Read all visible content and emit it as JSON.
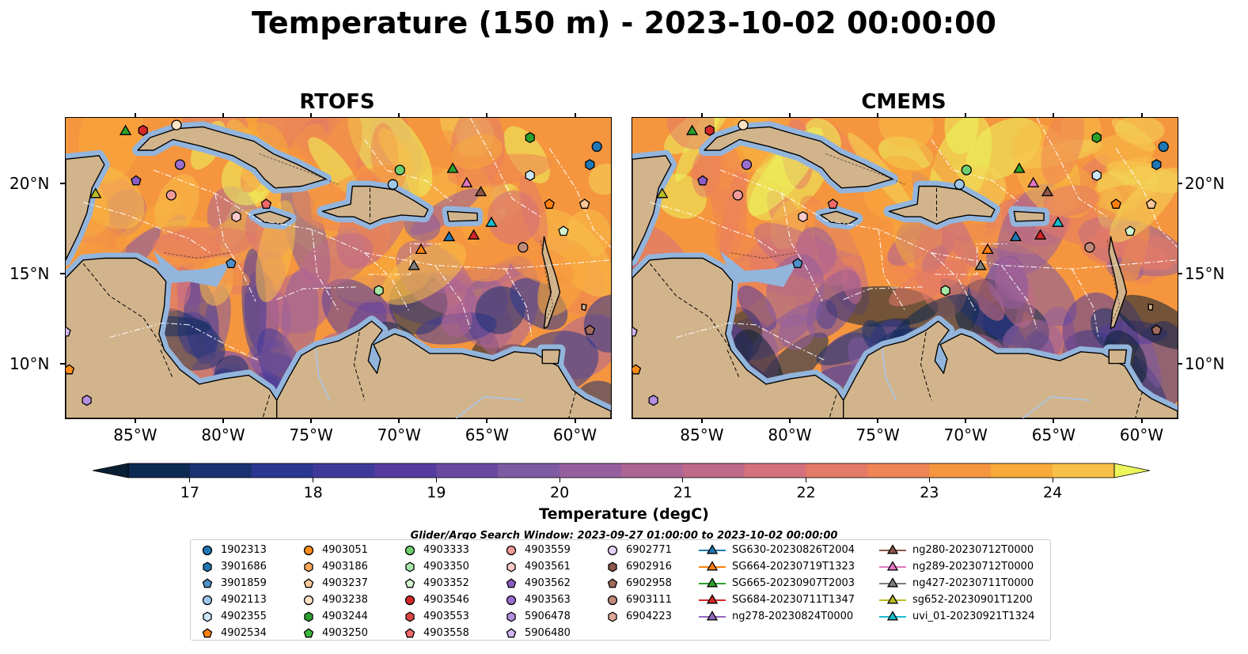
{
  "title": "Temperature (150 m) - 2023-10-02 00:00:00",
  "panels": [
    {
      "title": "RTOFS",
      "seed": 11
    },
    {
      "title": "CMEMS",
      "seed": 29
    }
  ],
  "axes": {
    "lat_labels": [
      "20°N",
      "15°N",
      "10°N"
    ],
    "lon_labels": [
      "85°W",
      "80°W",
      "75°W",
      "70°W",
      "65°W",
      "60°W"
    ]
  },
  "colorbar": {
    "label": "Temperature (degC)",
    "ticks": [
      "17",
      "18",
      "19",
      "20",
      "21",
      "22",
      "23",
      "24"
    ],
    "min": 16.5,
    "max": 24.5,
    "step": 0.5,
    "colors": [
      "#0a1f33",
      "#0c2a52",
      "#1a3270",
      "#2a3690",
      "#3f3a9a",
      "#563c9e",
      "#6a4aa0",
      "#7e5aa2",
      "#955f9e",
      "#ad6596",
      "#c06a8a",
      "#d4717c",
      "#e47a68",
      "#ef8554",
      "#f5963f",
      "#f8aa3a",
      "#f8c047",
      "#f3d657",
      "#ebf55c"
    ]
  },
  "search_window": "Glider/Argo Search Window: 2023-09-27 01:00:00 to 2023-10-02 00:00:00",
  "legend": [
    [
      {
        "label": "1902313",
        "shape": "circle",
        "color": "#1f77b4"
      },
      {
        "label": "3901686",
        "shape": "hexagon",
        "color": "#1f77b4"
      },
      {
        "label": "3901859",
        "shape": "pentagon",
        "color": "#4f90c8"
      },
      {
        "label": "4902113",
        "shape": "circle",
        "color": "#9fc8ea"
      },
      {
        "label": "4902355",
        "shape": "hexagon",
        "color": "#cde6f7"
      },
      {
        "label": "4902534",
        "shape": "pentagon",
        "color": "#ff7f0e"
      }
    ],
    [
      {
        "label": "4903051",
        "shape": "circle",
        "color": "#ff8c1a"
      },
      {
        "label": "4903186",
        "shape": "hexagon",
        "color": "#ffa65c"
      },
      {
        "label": "4903237",
        "shape": "pentagon",
        "color": "#ffc89a"
      },
      {
        "label": "4903238",
        "shape": "circle",
        "color": "#ffe4c8"
      },
      {
        "label": "4903244",
        "shape": "hexagon",
        "color": "#2ca02c"
      },
      {
        "label": "4903250",
        "shape": "pentagon",
        "color": "#3cb83c"
      }
    ],
    [
      {
        "label": "4903333",
        "shape": "circle",
        "color": "#6fcf6f"
      },
      {
        "label": "4903350",
        "shape": "hexagon",
        "color": "#a6e6a6"
      },
      {
        "label": "4903352",
        "shape": "pentagon",
        "color": "#d4f5d0"
      },
      {
        "label": "4903546",
        "shape": "circle",
        "color": "#d62728"
      },
      {
        "label": "4903553",
        "shape": "hexagon",
        "color": "#e04444"
      },
      {
        "label": "4903558",
        "shape": "pentagon",
        "color": "#ef6a6a"
      }
    ],
    [
      {
        "label": "4903559",
        "shape": "circle",
        "color": "#f29a9a"
      },
      {
        "label": "4903561",
        "shape": "hexagon",
        "color": "#fbcaca"
      },
      {
        "label": "4903562",
        "shape": "pentagon",
        "color": "#8c5cc4"
      },
      {
        "label": "4903563",
        "shape": "circle",
        "color": "#9b6fd0"
      },
      {
        "label": "5906478",
        "shape": "hexagon",
        "color": "#b58fe0"
      },
      {
        "label": "5906480",
        "shape": "pentagon",
        "color": "#d2b6f0"
      }
    ],
    [
      {
        "label": "6902771",
        "shape": "circle",
        "color": "#e6d2f7"
      },
      {
        "label": "6902916",
        "shape": "hexagon",
        "color": "#8c564b"
      },
      {
        "label": "6902958",
        "shape": "pentagon",
        "color": "#a06a5c"
      },
      {
        "label": "6903111",
        "shape": "circle",
        "color": "#c08a7a"
      },
      {
        "label": "6904223",
        "shape": "hexagon",
        "color": "#e0a89a"
      }
    ],
    [
      {
        "label": "SG630-20230826T2004",
        "shape": "triangle",
        "color": "#1f77b4"
      },
      {
        "label": "SG664-20230719T1323",
        "shape": "triangle",
        "color": "#ff7f0e"
      },
      {
        "label": "SG665-20230907T2003",
        "shape": "triangle",
        "color": "#2ca02c"
      },
      {
        "label": "SG684-20230711T1347",
        "shape": "triangle",
        "color": "#d62728"
      },
      {
        "label": "ng278-20230824T0000",
        "shape": "triangle",
        "color": "#9467bd"
      }
    ],
    [
      {
        "label": "ng280-20230712T0000",
        "shape": "triangle",
        "color": "#8c564b"
      },
      {
        "label": "ng289-20230712T0000",
        "shape": "triangle",
        "color": "#e377c2"
      },
      {
        "label": "ng427-20230711T0000",
        "shape": "triangle",
        "color": "#7f7f7f"
      },
      {
        "label": "sg652-20230901T1200",
        "shape": "triangle",
        "color": "#bcbd22"
      },
      {
        "label": "uvi_01-20230921T1324",
        "shape": "triangle",
        "color": "#17becf"
      }
    ]
  ],
  "markers": [
    {
      "lon": -85.6,
      "lat": 23.0,
      "shape": "triangle",
      "color": "#2ca02c"
    },
    {
      "lon": -84.6,
      "lat": 23.0,
      "shape": "hexagon",
      "color": "#d62728"
    },
    {
      "lon": -82.7,
      "lat": 23.3,
      "shape": "circle",
      "color": "#ffe4c8"
    },
    {
      "lon": -87.3,
      "lat": 19.5,
      "shape": "triangle",
      "color": "#bcbd22"
    },
    {
      "lon": -85.0,
      "lat": 20.2,
      "shape": "pentagon",
      "color": "#8c5cc4"
    },
    {
      "lon": -82.5,
      "lat": 21.1,
      "shape": "circle",
      "color": "#9b6fd0"
    },
    {
      "lon": -83.0,
      "lat": 19.4,
      "shape": "circle",
      "color": "#f29a9a"
    },
    {
      "lon": -79.3,
      "lat": 18.2,
      "shape": "hexagon",
      "color": "#fbcaca"
    },
    {
      "lon": -77.6,
      "lat": 18.9,
      "shape": "pentagon",
      "color": "#ef6a6a"
    },
    {
      "lon": -79.6,
      "lat": 15.6,
      "shape": "pentagon",
      "color": "#4f90c8"
    },
    {
      "lon": -70.0,
      "lat": 20.8,
      "shape": "circle",
      "color": "#6fcf6f"
    },
    {
      "lon": -70.4,
      "lat": 20.0,
      "shape": "circle",
      "color": "#9fc8ea"
    },
    {
      "lon": -67.0,
      "lat": 20.9,
      "shape": "triangle",
      "color": "#2ca02c"
    },
    {
      "lon": -66.2,
      "lat": 20.1,
      "shape": "triangle",
      "color": "#e377c2"
    },
    {
      "lon": -65.4,
      "lat": 19.6,
      "shape": "triangle",
      "color": "#8c564b"
    },
    {
      "lon": -62.6,
      "lat": 22.6,
      "shape": "hexagon",
      "color": "#2ca02c"
    },
    {
      "lon": -62.6,
      "lat": 20.5,
      "shape": "hexagon",
      "color": "#cde6f7"
    },
    {
      "lon": -61.5,
      "lat": 18.9,
      "shape": "pentagon",
      "color": "#ff7f0e"
    },
    {
      "lon": -59.5,
      "lat": 18.9,
      "shape": "pentagon",
      "color": "#ffc89a"
    },
    {
      "lon": -58.8,
      "lat": 22.1,
      "shape": "circle",
      "color": "#1f77b4"
    },
    {
      "lon": -59.2,
      "lat": 21.1,
      "shape": "hexagon",
      "color": "#1f77b4"
    },
    {
      "lon": -60.7,
      "lat": 17.4,
      "shape": "pentagon",
      "color": "#d4f5d0"
    },
    {
      "lon": -67.2,
      "lat": 17.1,
      "shape": "triangle",
      "color": "#1f77b4"
    },
    {
      "lon": -65.8,
      "lat": 17.2,
      "shape": "triangle",
      "color": "#d62728"
    },
    {
      "lon": -64.8,
      "lat": 17.9,
      "shape": "triangle",
      "color": "#17becf"
    },
    {
      "lon": -68.8,
      "lat": 16.4,
      "shape": "triangle",
      "color": "#ff7f0e"
    },
    {
      "lon": -69.2,
      "lat": 15.5,
      "shape": "triangle",
      "color": "#7f7f7f"
    },
    {
      "lon": -63.0,
      "lat": 16.5,
      "shape": "circle",
      "color": "#c08a7a"
    },
    {
      "lon": -71.2,
      "lat": 14.1,
      "shape": "hexagon",
      "color": "#a6e6a6"
    },
    {
      "lon": -59.2,
      "lat": 11.9,
      "shape": "pentagon",
      "color": "#a06a5c"
    },
    {
      "lon": -89.0,
      "lat": 11.8,
      "shape": "pentagon",
      "color": "#d2b6f0"
    },
    {
      "lon": -88.8,
      "lat": 9.7,
      "shape": "pentagon",
      "color": "#ff8c1a"
    },
    {
      "lon": -87.8,
      "lat": 8.0,
      "shape": "hexagon",
      "color": "#b58fe0"
    }
  ]
}
